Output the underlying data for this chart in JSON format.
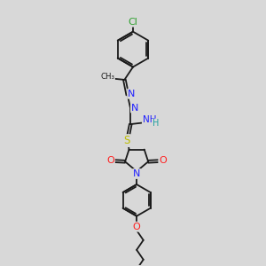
{
  "bg_color": "#d8d8d8",
  "bond_color": "#1a1a1a",
  "bond_width": 1.3,
  "atom_colors": {
    "Cl": "#2ca02c",
    "N": "#1f1fff",
    "O": "#ff2020",
    "S": "#bcbc00",
    "H": "#20a0a0",
    "C": "#1a1a1a"
  },
  "figsize": [
    3.0,
    3.0
  ],
  "dpi": 100
}
